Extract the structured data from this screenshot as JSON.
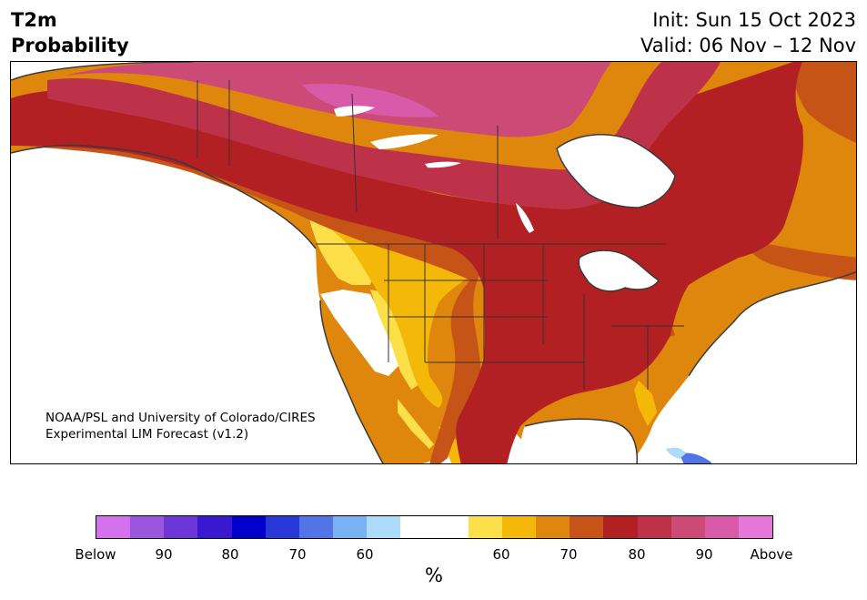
{
  "header": {
    "variable": "T2m",
    "product": "Probability",
    "init": "Init: Sun 15 Oct 2023",
    "valid": "Valid: 06 Nov – 12 Nov"
  },
  "map": {
    "credit_line1": "NOAA/PSL and University of Colorado/CIRES",
    "credit_line2": "Experimental LIM Forecast (v1.2)",
    "region": "North America"
  },
  "colorbar": {
    "colors": [
      "#d471ec",
      "#9b56e0",
      "#6d37d8",
      "#3a18d2",
      "#0000cd",
      "#2838d8",
      "#5274e6",
      "#79b2f2",
      "#addcfb",
      "#ffffff",
      "#ffffff",
      "#fddf4a",
      "#f3b808",
      "#df860d",
      "#c65417",
      "#b22024",
      "#be3249",
      "#cb4a76",
      "#d95aa8",
      "#e776d9"
    ],
    "tick_labels": [
      "Below",
      "90",
      "80",
      "70",
      "60",
      "60",
      "70",
      "80",
      "90",
      "Above"
    ],
    "unit": "%"
  }
}
